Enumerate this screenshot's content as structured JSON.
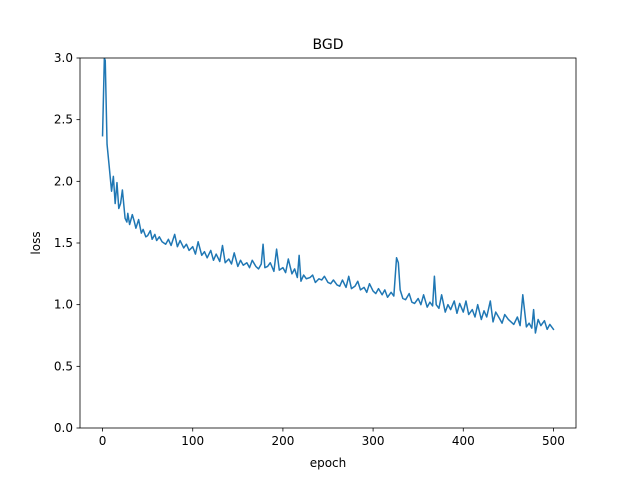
{
  "chart_data": {
    "type": "line",
    "title": "BGD",
    "xlabel": "epoch",
    "ylabel": "loss",
    "xlim": [
      -25,
      525
    ],
    "ylim": [
      0.0,
      3.0
    ],
    "xticks": [
      0,
      100,
      200,
      300,
      400,
      500
    ],
    "xtick_labels": [
      "0",
      "100",
      "200",
      "300",
      "400",
      "500"
    ],
    "yticks": [
      0.0,
      0.5,
      1.0,
      1.5,
      2.0,
      2.5,
      3.0
    ],
    "ytick_labels": [
      "0.0",
      "0.5",
      "1.0",
      "1.5",
      "2.0",
      "2.5",
      "3.0"
    ],
    "grid": false,
    "series": [
      {
        "color": "#1f77b4",
        "x": [
          0,
          2,
          3,
          5,
          7,
          10,
          12,
          14,
          16,
          18,
          20,
          22,
          25,
          27,
          28,
          30,
          33,
          35,
          37,
          40,
          43,
          45,
          48,
          50,
          53,
          55,
          58,
          60,
          63,
          66,
          70,
          73,
          76,
          80,
          83,
          86,
          90,
          93,
          96,
          100,
          103,
          106,
          110,
          113,
          116,
          120,
          123,
          126,
          130,
          133,
          136,
          140,
          143,
          146,
          150,
          153,
          156,
          160,
          163,
          166,
          170,
          173,
          176,
          178,
          180,
          183,
          186,
          190,
          193,
          196,
          200,
          203,
          206,
          210,
          213,
          216,
          218,
          220,
          223,
          226,
          230,
          233,
          236,
          240,
          243,
          246,
          250,
          253,
          256,
          260,
          263,
          266,
          270,
          273,
          276,
          280,
          283,
          286,
          290,
          293,
          296,
          300,
          303,
          306,
          310,
          313,
          316,
          320,
          323,
          326,
          328,
          330,
          333,
          336,
          340,
          343,
          346,
          350,
          353,
          356,
          360,
          363,
          366,
          368,
          370,
          373,
          376,
          380,
          383,
          386,
          390,
          393,
          396,
          400,
          403,
          406,
          410,
          413,
          416,
          420,
          423,
          426,
          430,
          433,
          436,
          440,
          443,
          446,
          450,
          453,
          456,
          460,
          463,
          466,
          470,
          473,
          476,
          478,
          480,
          483,
          486,
          490,
          493,
          496,
          500
        ],
        "y": [
          2.37,
          3.0,
          2.98,
          2.3,
          2.15,
          1.92,
          2.04,
          1.82,
          1.99,
          1.78,
          1.82,
          1.93,
          1.7,
          1.67,
          1.74,
          1.65,
          1.73,
          1.68,
          1.62,
          1.69,
          1.58,
          1.61,
          1.55,
          1.56,
          1.6,
          1.53,
          1.57,
          1.52,
          1.55,
          1.51,
          1.49,
          1.53,
          1.48,
          1.57,
          1.47,
          1.52,
          1.46,
          1.49,
          1.44,
          1.47,
          1.41,
          1.51,
          1.4,
          1.43,
          1.38,
          1.44,
          1.36,
          1.41,
          1.35,
          1.48,
          1.34,
          1.37,
          1.33,
          1.42,
          1.31,
          1.36,
          1.32,
          1.34,
          1.3,
          1.36,
          1.31,
          1.29,
          1.33,
          1.49,
          1.3,
          1.31,
          1.34,
          1.27,
          1.45,
          1.28,
          1.3,
          1.26,
          1.37,
          1.25,
          1.29,
          1.22,
          1.4,
          1.19,
          1.24,
          1.21,
          1.22,
          1.24,
          1.18,
          1.21,
          1.2,
          1.23,
          1.18,
          1.17,
          1.2,
          1.16,
          1.15,
          1.2,
          1.14,
          1.23,
          1.13,
          1.15,
          1.19,
          1.12,
          1.14,
          1.1,
          1.17,
          1.11,
          1.09,
          1.13,
          1.08,
          1.12,
          1.06,
          1.1,
          1.07,
          1.38,
          1.34,
          1.12,
          1.05,
          1.04,
          1.09,
          1.02,
          1.01,
          1.05,
          1.0,
          1.08,
          0.98,
          1.02,
          0.99,
          1.23,
          1.0,
          0.97,
          1.08,
          0.94,
          1.0,
          0.96,
          1.03,
          0.93,
          1.01,
          0.94,
          1.03,
          0.92,
          0.96,
          0.9,
          1.0,
          0.88,
          0.95,
          0.9,
          1.03,
          0.86,
          0.94,
          0.89,
          0.85,
          0.92,
          0.88,
          0.86,
          0.84,
          0.9,
          0.83,
          1.08,
          0.82,
          0.85,
          0.81,
          0.96,
          0.77,
          0.88,
          0.83,
          0.87,
          0.8,
          0.84,
          0.8
        ]
      }
    ]
  }
}
